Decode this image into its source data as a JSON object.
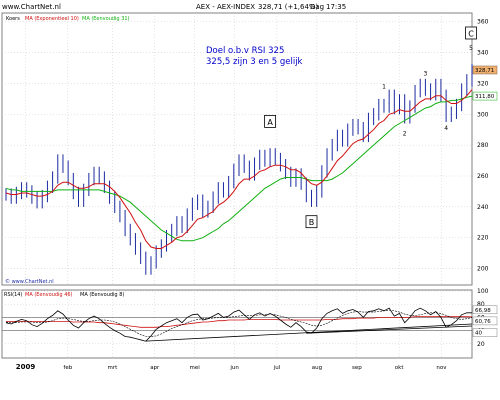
{
  "header": {
    "source": "www.ChartNet.nl",
    "instrument": "AEX - AEX-INDEX",
    "last_change": "328,71 (+1,64%)",
    "period": "Dag",
    "time": "17:35"
  },
  "annotation": {
    "line1": "Doel o.b.v RSI 325",
    "line2": "325,5 zijn 3 en 5 gelijk"
  },
  "colors": {
    "price": "#1a2aa0",
    "ema10": "#d01010",
    "ma31": "#10b010",
    "rsi": "#000000",
    "rsi_ma8": "#000000",
    "rsi_ma46": "#d01010",
    "grid": "#c8c8c8",
    "frame": "#808080"
  },
  "chart_data": [
    {
      "type": "line",
      "title": "AEX - AEX-INDEX",
      "legend": [
        "Koers",
        "MA (Exponentieel 10)",
        "MA (Eenvoudig 31)"
      ],
      "x_ticks": [
        "2009",
        "feb",
        "mrt",
        "apr",
        "mei",
        "jun",
        "jul",
        "aug",
        "sep",
        "okt",
        "nov"
      ],
      "y_ticks": [
        200,
        220,
        240,
        260,
        280,
        300,
        320,
        340,
        360
      ],
      "ylim": [
        190,
        365
      ],
      "last_price_label": "328,71",
      "ma_label": "311,80",
      "wave_labels": [
        {
          "text": "A",
          "boxed": true
        },
        {
          "text": "B",
          "boxed": true
        },
        {
          "text": "C",
          "boxed": true
        },
        {
          "text": "1",
          "boxed": false
        },
        {
          "text": "2",
          "boxed": false
        },
        {
          "text": "3",
          "boxed": false
        },
        {
          "text": "4",
          "boxed": false
        },
        {
          "text": "5",
          "boxed": false
        }
      ],
      "watermark": "© www.ChartNet.nl",
      "series": [
        {
          "name": "Koers",
          "values": [
            248,
            246,
            249,
            252,
            250,
            246,
            243,
            247,
            253,
            259,
            270,
            266,
            258,
            249,
            244,
            251,
            258,
            262,
            259,
            253,
            246,
            240,
            234,
            225,
            219,
            213,
            207,
            200,
            204,
            211,
            215,
            221,
            225,
            230,
            227,
            235,
            242,
            244,
            237,
            240,
            246,
            252,
            250,
            256,
            264,
            270,
            266,
            261,
            268,
            273,
            270,
            274,
            271,
            267,
            262,
            257,
            261,
            255,
            247,
            244,
            250,
            263,
            274,
            280,
            286,
            283,
            290,
            293,
            291,
            286,
            297,
            300,
            306,
            305,
            312,
            304,
            309,
            298,
            305,
            315,
            319,
            316,
            313,
            319,
            312,
            299,
            301,
            306,
            316,
            322,
            328.71
          ]
        },
        {
          "name": "MA (Exponentieel 10)",
          "values": [
            249,
            248,
            248,
            249,
            249,
            248,
            247,
            247,
            248,
            250,
            254,
            256,
            256,
            254,
            252,
            252,
            253,
            255,
            255,
            255,
            253,
            250,
            246,
            241,
            236,
            230,
            225,
            218,
            214,
            213,
            213,
            215,
            217,
            220,
            221,
            224,
            228,
            232,
            233,
            235,
            237,
            241,
            243,
            246,
            250,
            255,
            258,
            258,
            260,
            263,
            264,
            266,
            267,
            267,
            266,
            264,
            264,
            262,
            258,
            255,
            254,
            256,
            260,
            265,
            270,
            273,
            277,
            281,
            283,
            284,
            287,
            290,
            294,
            296,
            300,
            301,
            303,
            302,
            302,
            305,
            308,
            310,
            310,
            312,
            312,
            309,
            307,
            307,
            309,
            312,
            316
          ]
        },
        {
          "name": "MA (Eenvoudig 31)",
          "values": [
            252,
            251,
            251,
            250,
            250,
            250,
            250,
            250,
            250,
            250,
            251,
            251,
            251,
            251,
            251,
            251,
            251,
            251,
            251,
            250,
            249,
            248,
            247,
            245,
            243,
            240,
            237,
            234,
            231,
            228,
            225,
            223,
            221,
            219,
            218,
            218,
            218,
            219,
            220,
            222,
            224,
            226,
            229,
            231,
            234,
            237,
            240,
            243,
            246,
            249,
            252,
            254,
            256,
            258,
            259,
            259,
            259,
            259,
            258,
            257,
            257,
            257,
            257,
            258,
            260,
            262,
            265,
            268,
            271,
            274,
            277,
            280,
            283,
            286,
            289,
            292,
            294,
            296,
            298,
            300,
            302,
            304,
            305,
            307,
            308,
            308,
            309,
            309,
            310,
            311,
            311.8
          ]
        }
      ]
    },
    {
      "type": "line",
      "title": "RSI(14)",
      "legend": [
        "RSI(14)",
        "MA (Eenvoudig 46)",
        "MA (Eenvoudig 8)"
      ],
      "y_ticks": [
        20,
        40,
        60,
        80,
        100
      ],
      "ylim": [
        0,
        100
      ],
      "last_labels": [
        "66,98",
        "60,76",
        "40"
      ],
      "series": [
        {
          "name": "RSI(14)",
          "values": [
            52,
            50,
            54,
            57,
            55,
            49,
            46,
            51,
            58,
            63,
            70,
            65,
            56,
            48,
            44,
            52,
            58,
            62,
            58,
            51,
            45,
            40,
            36,
            31,
            30,
            28,
            26,
            24,
            32,
            42,
            47,
            52,
            55,
            58,
            52,
            60,
            64,
            65,
            56,
            58,
            62,
            66,
            60,
            62,
            68,
            71,
            64,
            57,
            64,
            67,
            62,
            66,
            62,
            56,
            50,
            45,
            52,
            46,
            38,
            36,
            44,
            58,
            66,
            70,
            73,
            66,
            70,
            72,
            68,
            60,
            69,
            70,
            73,
            70,
            74,
            62,
            66,
            52,
            60,
            70,
            74,
            70,
            64,
            69,
            60,
            45,
            49,
            55,
            64,
            67,
            66.98
          ]
        },
        {
          "name": "MA (Eenvoudig 46)",
          "values": [
            54,
            54,
            54,
            54,
            54,
            54,
            54,
            54,
            54,
            54,
            54,
            54,
            54,
            53,
            53,
            53,
            53,
            53,
            52,
            52,
            51,
            50,
            49,
            48,
            47,
            46,
            45,
            45,
            45,
            45,
            46,
            46,
            47,
            48,
            49,
            50,
            51,
            52,
            53,
            53,
            54,
            55,
            55,
            56,
            56,
            56,
            56,
            57,
            57,
            57,
            57,
            57,
            57,
            56,
            56,
            56,
            56,
            56,
            56,
            56,
            56,
            56,
            57,
            57,
            57,
            58,
            58,
            58,
            59,
            59,
            59,
            59,
            60,
            60,
            60,
            60,
            60,
            60,
            60,
            61,
            61,
            61,
            61,
            61,
            61,
            61,
            61,
            61,
            61,
            61,
            60.76
          ]
        },
        {
          "name": "MA (Eenvoudig 8)",
          "values": [
            53,
            52,
            52,
            53,
            53,
            53,
            52,
            52,
            53,
            55,
            58,
            59,
            58,
            57,
            55,
            54,
            54,
            55,
            56,
            56,
            55,
            53,
            50,
            46,
            42,
            38,
            34,
            31,
            31,
            32,
            35,
            39,
            43,
            46,
            49,
            52,
            55,
            57,
            58,
            58,
            59,
            60,
            60,
            60,
            61,
            62,
            63,
            63,
            63,
            64,
            64,
            65,
            64,
            62,
            60,
            57,
            55,
            53,
            51,
            48,
            47,
            48,
            51,
            55,
            59,
            63,
            66,
            68,
            69,
            68,
            68,
            68,
            69,
            70,
            71,
            70,
            68,
            65,
            63,
            63,
            64,
            66,
            67,
            67,
            66,
            63,
            60,
            58,
            57,
            58,
            60
          ]
        }
      ]
    }
  ]
}
